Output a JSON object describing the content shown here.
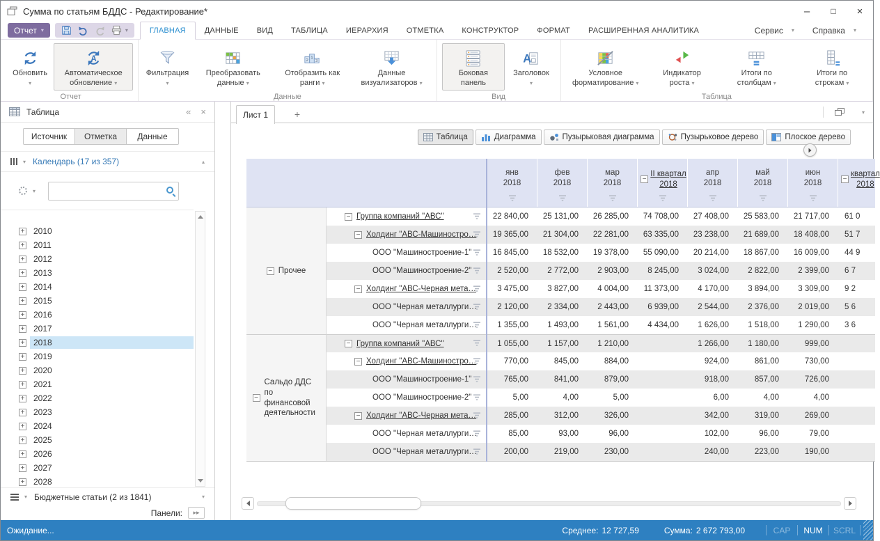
{
  "window": {
    "title": "Сумма по статьям БДДС - Редактирование*",
    "controls": [
      "minimize",
      "maximize",
      "close"
    ]
  },
  "menu": {
    "report_button": "Отчет",
    "quick_access": [
      {
        "icon": "save-icon"
      },
      {
        "icon": "undo-icon"
      },
      {
        "icon": "redo-icon"
      },
      {
        "icon": "print-icon",
        "dropdown": true
      }
    ],
    "tabs": [
      "ГЛАВНАЯ",
      "ДАННЫЕ",
      "ВИД",
      "ТАБЛИЦА",
      "ИЕРАРХИЯ",
      "ОТМЕТКА",
      "КОНСТРУКТОР",
      "ФОРМАТ",
      "РАСШИРЕННАЯ АНАЛИТИКА"
    ],
    "active_tab": "ГЛАВНАЯ",
    "right_menus": [
      "Сервис",
      "Справка"
    ]
  },
  "ribbon": {
    "groups": [
      {
        "label": "Отчет",
        "buttons": [
          {
            "label": "Обновить",
            "icon": "refresh-icon",
            "dropdown": true,
            "pressed": false
          },
          {
            "label": "Автоматическое обновление",
            "icon": "auto-refresh-icon",
            "dropdown": true,
            "pressed": true
          }
        ]
      },
      {
        "label": "Данные",
        "buttons": [
          {
            "label": "Фильтрация",
            "icon": "filter-funnel-icon",
            "dropdown": true,
            "pressed": false
          },
          {
            "label": "Преобразовать данные",
            "icon": "transform-data-icon",
            "dropdown": true,
            "pressed": false
          },
          {
            "label": "Отобразить как ранги",
            "icon": "ranks-icon",
            "dropdown": true,
            "pressed": false
          },
          {
            "label": "Данные визуализаторов",
            "icon": "visualizer-data-icon",
            "dropdown": true,
            "pressed": false
          }
        ]
      },
      {
        "label": "Вид",
        "buttons": [
          {
            "label": "Боковая панель",
            "icon": "side-panel-icon",
            "dropdown": false,
            "pressed": true
          },
          {
            "label": "Заголовок",
            "icon": "title-icon",
            "dropdown": true,
            "pressed": false
          }
        ]
      },
      {
        "label": "Таблица",
        "buttons": [
          {
            "label": "Условное форматирование",
            "icon": "conditional-formatting-icon",
            "dropdown": true,
            "pressed": false
          },
          {
            "label": "Индикатор роста",
            "icon": "growth-indicator-icon",
            "dropdown": true,
            "pressed": false
          },
          {
            "label": "Итоги по столбцам",
            "icon": "column-totals-icon",
            "dropdown": true,
            "pressed": false
          },
          {
            "label": "Итоги по строкам",
            "icon": "row-totals-icon",
            "dropdown": true,
            "pressed": false
          }
        ]
      }
    ]
  },
  "sidebar": {
    "title": "Таблица",
    "tabs": [
      "Источник",
      "Отметка",
      "Данные"
    ],
    "active_tab": "Отметка",
    "calendar_label": "Календарь (17 из 357)",
    "search_placeholder": "",
    "years": [
      "2010",
      "2011",
      "2012",
      "2013",
      "2014",
      "2015",
      "2016",
      "2017",
      "2018",
      "2019",
      "2020",
      "2021",
      "2022",
      "2023",
      "2024",
      "2025",
      "2026",
      "2027",
      "2028"
    ],
    "selected_year": "2018",
    "budget_label": "Бюджетные статьи (2 из 1841)",
    "panels_label": "Панели:"
  },
  "sheet": {
    "tab_label": "Лист 1",
    "add_tab": "+"
  },
  "views": [
    {
      "label": "Таблица",
      "icon": "table-view-icon",
      "active": true
    },
    {
      "label": "Диаграмма",
      "icon": "chart-view-icon",
      "active": false
    },
    {
      "label": "Пузырьковая диаграмма",
      "icon": "bubble-chart-icon",
      "active": false
    },
    {
      "label": "Пузырьковое дерево",
      "icon": "bubble-tree-icon",
      "active": false
    },
    {
      "label": "Плоское дерево",
      "icon": "flat-tree-icon",
      "active": false
    }
  ],
  "table": {
    "columns": [
      {
        "type": "month",
        "line1": "янв",
        "line2": "2018"
      },
      {
        "type": "month",
        "line1": "фев",
        "line2": "2018"
      },
      {
        "type": "month",
        "line1": "мар",
        "line2": "2018"
      },
      {
        "type": "quarter",
        "label": "II квартал 2018"
      },
      {
        "type": "month",
        "line1": "апр",
        "line2": "2018"
      },
      {
        "type": "month",
        "line1": "май",
        "line2": "2018"
      },
      {
        "type": "month",
        "line1": "июн",
        "line2": "2018"
      },
      {
        "type": "quarter",
        "label": "квартал 2018",
        "partial": true
      }
    ],
    "groups": [
      {
        "name": "Прочее",
        "rows": [
          {
            "name": "Группа компаний \"АВС\"",
            "level": 0,
            "expandable": true,
            "link": true,
            "values": [
              "22 840,00",
              "25 131,00",
              "26 285,00",
              "74 708,00",
              "27 408,00",
              "25 583,00",
              "21 717,00",
              "61 0"
            ]
          },
          {
            "name": "Холдинг \"АВС-Машиностро…",
            "level": 1,
            "expandable": true,
            "link": true,
            "values": [
              "19 365,00",
              "21 304,00",
              "22 281,00",
              "63 335,00",
              "23 238,00",
              "21 689,00",
              "18 408,00",
              "51 7"
            ]
          },
          {
            "name": "ООО \"Машиностроение-1\"",
            "level": 2,
            "expandable": false,
            "link": false,
            "values": [
              "16 845,00",
              "18 532,00",
              "19 378,00",
              "55 090,00",
              "20 214,00",
              "18 867,00",
              "16 009,00",
              "44 9"
            ]
          },
          {
            "name": "ООО \"Машиностроение-2\"",
            "level": 2,
            "expandable": false,
            "link": false,
            "values": [
              "2 520,00",
              "2 772,00",
              "2 903,00",
              "8 245,00",
              "3 024,00",
              "2 822,00",
              "2 399,00",
              "6 7"
            ]
          },
          {
            "name": "Холдинг \"АВС-Черная мета…",
            "level": 1,
            "expandable": true,
            "link": true,
            "values": [
              "3 475,00",
              "3 827,00",
              "4 004,00",
              "11 373,00",
              "4 170,00",
              "3 894,00",
              "3 309,00",
              "9 2"
            ]
          },
          {
            "name": "ООО \"Черная металлурги…",
            "level": 2,
            "expandable": false,
            "link": false,
            "values": [
              "2 120,00",
              "2 334,00",
              "2 443,00",
              "6 939,00",
              "2 544,00",
              "2 376,00",
              "2 019,00",
              "5 6"
            ]
          },
          {
            "name": "ООО \"Черная металлурги…",
            "level": 2,
            "expandable": false,
            "link": false,
            "values": [
              "1 355,00",
              "1 493,00",
              "1 561,00",
              "4 434,00",
              "1 626,00",
              "1 518,00",
              "1 290,00",
              "3 6"
            ]
          }
        ]
      },
      {
        "name": "Сальдо ДДС по финансовой деятельности",
        "rows": [
          {
            "name": "Группа компаний \"АВС\"",
            "level": 0,
            "expandable": true,
            "link": true,
            "values": [
              "1 055,00",
              "1 157,00",
              "1 210,00",
              "",
              "1 266,00",
              "1 180,00",
              "999,00",
              ""
            ]
          },
          {
            "name": "Холдинг \"АВС-Машиностро…",
            "level": 1,
            "expandable": true,
            "link": true,
            "values": [
              "770,00",
              "845,00",
              "884,00",
              "",
              "924,00",
              "861,00",
              "730,00",
              ""
            ]
          },
          {
            "name": "ООО \"Машиностроение-1\"",
            "level": 2,
            "expandable": false,
            "link": false,
            "values": [
              "765,00",
              "841,00",
              "879,00",
              "",
              "918,00",
              "857,00",
              "726,00",
              ""
            ]
          },
          {
            "name": "ООО \"Машиностроение-2\"",
            "level": 2,
            "expandable": false,
            "link": false,
            "values": [
              "5,00",
              "4,00",
              "5,00",
              "",
              "6,00",
              "4,00",
              "4,00",
              ""
            ]
          },
          {
            "name": "Холдинг \"АВС-Черная мета…",
            "level": 1,
            "expandable": true,
            "link": true,
            "values": [
              "285,00",
              "312,00",
              "326,00",
              "",
              "342,00",
              "319,00",
              "269,00",
              ""
            ]
          },
          {
            "name": "ООО \"Черная металлурги…",
            "level": 2,
            "expandable": false,
            "link": false,
            "values": [
              "85,00",
              "93,00",
              "96,00",
              "",
              "102,00",
              "96,00",
              "79,00",
              ""
            ]
          },
          {
            "name": "ООО \"Черная металлурги…",
            "level": 2,
            "expandable": false,
            "link": false,
            "values": [
              "200,00",
              "219,00",
              "230,00",
              "",
              "240,00",
              "223,00",
              "190,00",
              ""
            ]
          }
        ]
      }
    ]
  },
  "status": {
    "left": "Ожидание...",
    "average_label": "Среднее:",
    "average_value": "12 727,59",
    "sum_label": "Сумма:",
    "sum_value": "2 672 793,00",
    "indicators": [
      {
        "label": "CAP",
        "active": false
      },
      {
        "label": "NUM",
        "active": true
      },
      {
        "label": "SCRL",
        "active": false
      }
    ]
  },
  "colors": {
    "accent_purple": "#7e6c9f",
    "active_tab_blue": "#2c8fd0",
    "header_lavender": "#dfe3f3",
    "selection_blue": "#cde6f7",
    "statusbar_blue": "#2e80c1",
    "stripe_gray": "#eaeaea",
    "section_link_blue": "#3478b5"
  }
}
